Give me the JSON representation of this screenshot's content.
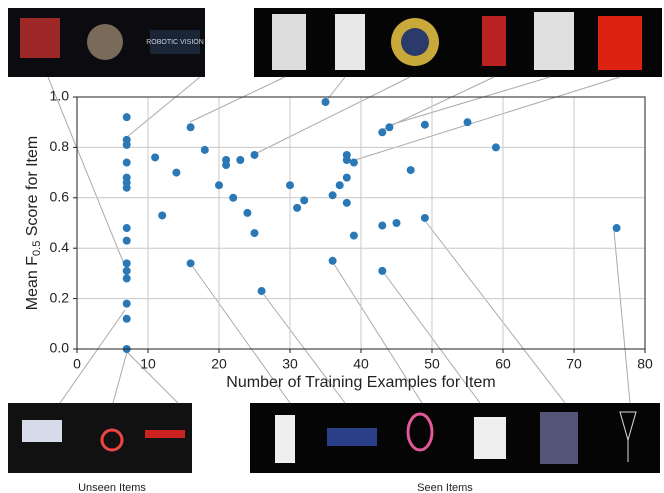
{
  "chart_data": {
    "type": "scatter",
    "x_label": "Number of Training Examples for Item",
    "y_label": [
      "Mean F",
      "0.5",
      " Score for Item"
    ],
    "captions": [
      "Unseen Items",
      "Seen Items"
    ],
    "color": "#2a78b6",
    "grid": true,
    "xlim": [
      0,
      80
    ],
    "xticks": [
      0,
      10,
      20,
      30,
      40,
      50,
      60,
      70,
      80
    ],
    "ylim": [
      0,
      1.0
    ],
    "yticks": [
      {
        "value": 0,
        "label": "0.0"
      },
      {
        "value": 0.2,
        "label": "0.2"
      },
      {
        "value": 0.4,
        "label": "0.4"
      },
      {
        "value": 0.6,
        "label": "0.6"
      },
      {
        "value": 0.8,
        "label": "0.8"
      },
      {
        "value": 1.0,
        "label": "1.0"
      }
    ],
    "x": [
      7,
      7,
      7,
      7,
      7,
      7,
      7,
      7,
      7,
      7,
      7,
      7,
      7,
      7,
      7,
      11,
      12,
      14,
      16,
      18,
      20,
      21,
      21,
      22,
      23,
      24,
      25,
      25,
      16,
      26,
      30,
      31,
      32,
      35,
      36,
      36,
      37,
      38,
      38,
      38,
      38,
      39,
      39,
      43,
      44,
      43,
      43,
      45,
      47,
      49,
      49,
      55,
      59,
      76
    ],
    "values": [
      0.92,
      0.83,
      0.81,
      0.74,
      0.68,
      0.66,
      0.64,
      0.48,
      0.43,
      0.34,
      0.31,
      0.28,
      0.18,
      0.12,
      0.0,
      0.76,
      0.53,
      0.7,
      0.88,
      0.79,
      0.65,
      0.75,
      0.73,
      0.6,
      0.75,
      0.54,
      0.77,
      0.46,
      0.34,
      0.23,
      0.65,
      0.56,
      0.59,
      0.98,
      0.61,
      0.35,
      0.65,
      0.77,
      0.75,
      0.68,
      0.58,
      0.74,
      0.45,
      0.86,
      0.88,
      0.49,
      0.31,
      0.5,
      0.71,
      0.89,
      0.52,
      0.9,
      0.8,
      0.48
    ]
  }
}
